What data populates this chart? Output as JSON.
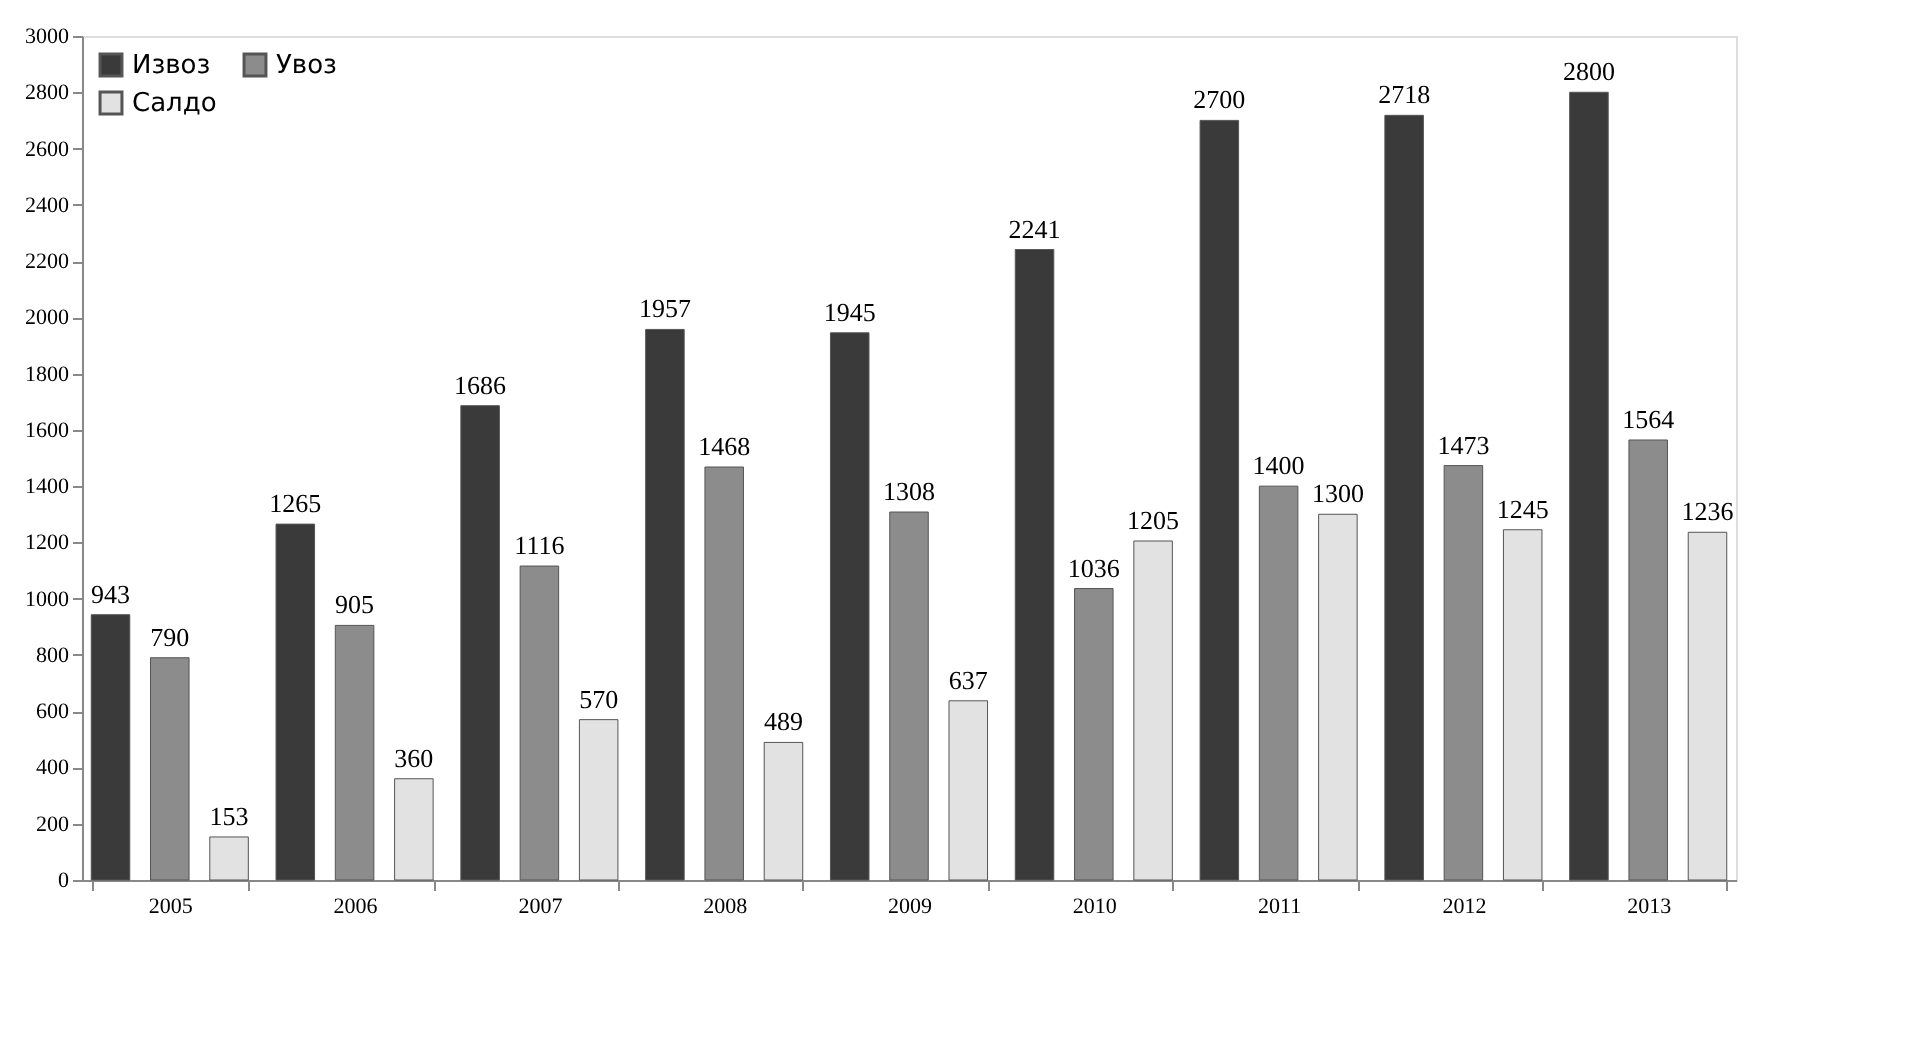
{
  "chart_data": {
    "type": "bar",
    "categories": [
      "2005",
      "2006",
      "2007",
      "2008",
      "2009",
      "2010",
      "2011",
      "2012",
      "2013"
    ],
    "series": [
      {
        "name": "Извоз",
        "color": "#3a3a3a",
        "values": [
          943,
          1265,
          1686,
          1957,
          1945,
          2241,
          2700,
          2718,
          2800
        ]
      },
      {
        "name": "Увоз",
        "color": "#8c8c8c",
        "values": [
          790,
          905,
          1116,
          1468,
          1308,
          1036,
          1400,
          1473,
          1564
        ]
      },
      {
        "name": "Салдо",
        "color": "#e2e2e2",
        "values": [
          153,
          360,
          570,
          489,
          637,
          1205,
          1300,
          1245,
          1236
        ]
      }
    ],
    "ylim": [
      0,
      3000
    ],
    "yticks": [
      0,
      200,
      400,
      600,
      800,
      1000,
      1200,
      1400,
      1600,
      1800,
      2000,
      2200,
      2400,
      2600,
      2800,
      3000
    ],
    "data_labels": true,
    "grid": false,
    "legend": "top left"
  }
}
